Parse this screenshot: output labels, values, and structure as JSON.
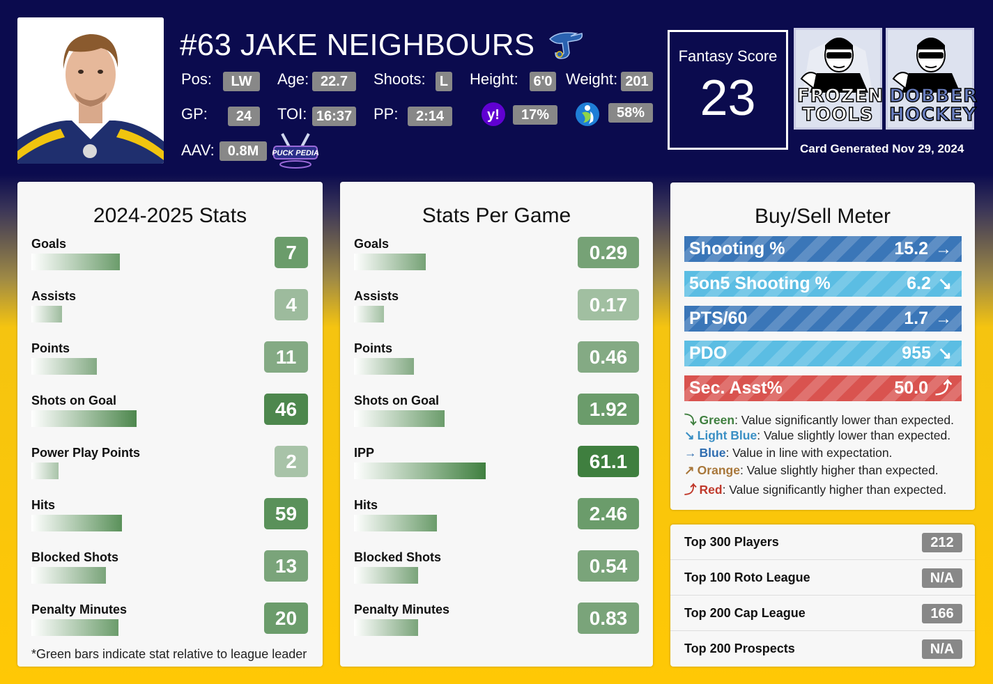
{
  "player": {
    "name": "#63 JAKE NEIGHBOURS",
    "pos_label": "Pos:",
    "pos": "LW",
    "age_label": "Age:",
    "age": "22.7",
    "shoots_label": "Shoots:",
    "shoots": "L",
    "height_label": "Height:",
    "height": "6'0",
    "weight_label": "Weight:",
    "weight": "201",
    "gp_label": "GP:",
    "gp": "24",
    "toi_label": "TOI:",
    "toi": "16:37",
    "pp_label": "PP:",
    "pp": "2:14",
    "yahoo_pct": "17%",
    "espn_pct": "58%",
    "aav_label": "AAV:",
    "aav": "0.8M",
    "puckpedia_text": "PUCK PEDIA"
  },
  "fantasy": {
    "label": "Fantasy Score",
    "score": "23"
  },
  "logos": {
    "frozen": "FROZEN TOOLS",
    "dobber": "DOBBER HOCKEY"
  },
  "card_generated": "Card Generated Nov 29, 2024",
  "season_stats": {
    "title": "2024-2025 Stats",
    "rows": [
      {
        "label": "Goals",
        "value": "7",
        "bar_fraction": 0.49,
        "color": "#6b9c6b"
      },
      {
        "label": "Assists",
        "value": "4",
        "bar_fraction": 0.17,
        "color": "#9dbb9d"
      },
      {
        "label": "Points",
        "value": "11",
        "bar_fraction": 0.36,
        "color": "#84aa84"
      },
      {
        "label": "Shots on Goal",
        "value": "46",
        "bar_fraction": 0.58,
        "color": "#4d874d"
      },
      {
        "label": "Power Play Points",
        "value": "2",
        "bar_fraction": 0.15,
        "color": "#a8c3a8"
      },
      {
        "label": "Hits",
        "value": "59",
        "bar_fraction": 0.5,
        "color": "#5a915a"
      },
      {
        "label": "Blocked Shots",
        "value": "13",
        "bar_fraction": 0.41,
        "color": "#7aa47a"
      },
      {
        "label": "Penalty Minutes",
        "value": "20",
        "bar_fraction": 0.48,
        "color": "#6b9c6b"
      }
    ],
    "footnote": "*Green bars indicate stat relative to league leader"
  },
  "per_game": {
    "title": "Stats Per Game",
    "rows": [
      {
        "label": "Goals",
        "value": "0.29",
        "bar_fraction": 0.38,
        "color": "#76a276"
      },
      {
        "label": "Assists",
        "value": "0.17",
        "bar_fraction": 0.16,
        "color": "#a1bfa1"
      },
      {
        "label": "Points",
        "value": "0.46",
        "bar_fraction": 0.32,
        "color": "#84aa84"
      },
      {
        "label": "Shots on Goal",
        "value": "1.92",
        "bar_fraction": 0.48,
        "color": "#6b9c6b"
      },
      {
        "label": "IPP",
        "value": "61.1",
        "bar_fraction": 0.7,
        "color": "#3f7f3f"
      },
      {
        "label": "Hits",
        "value": "2.46",
        "bar_fraction": 0.44,
        "color": "#6b9c6b"
      },
      {
        "label": "Blocked Shots",
        "value": "0.54",
        "bar_fraction": 0.34,
        "color": "#7aa47a"
      },
      {
        "label": "Penalty Minutes",
        "value": "0.83",
        "bar_fraction": 0.34,
        "color": "#7aa47a"
      }
    ]
  },
  "buy_sell": {
    "title": "Buy/Sell Meter",
    "rows": [
      {
        "label": "Shooting %",
        "value": "15.2",
        "arrow": "→",
        "trend": "blue",
        "color": "#3a76b8"
      },
      {
        "label": "5on5 Shooting %",
        "value": "6.2",
        "arrow": "↘",
        "trend": "light-blue",
        "color": "#5bbde3"
      },
      {
        "label": "PTS/60",
        "value": "1.7",
        "arrow": "→",
        "trend": "blue",
        "color": "#3a76b8"
      },
      {
        "label": "PDO",
        "value": "955",
        "arrow": "↘",
        "trend": "light-blue",
        "color": "#5bbde3"
      },
      {
        "label": "Sec. Asst%",
        "value": "50.0",
        "arrow": "⤴",
        "trend": "red",
        "color": "#d9534f"
      }
    ],
    "legend": [
      {
        "arrow": "⤵",
        "name": "Green",
        "text": ": Value significantly lower than expected.",
        "color": "#3f7f3f"
      },
      {
        "arrow": "↘",
        "name": "Light Blue",
        "text": ": Value slightly lower than expected.",
        "color": "#3a8fc4"
      },
      {
        "arrow": "→",
        "name": "Blue",
        "text": ": Value in line with expectation.",
        "color": "#2f6db0"
      },
      {
        "arrow": "↗",
        "name": "Orange",
        "text": ": Value slightly higher than expected.",
        "color": "#a8773a"
      },
      {
        "arrow": "⤴",
        "name": "Red",
        "text": ": Value significantly higher than expected.",
        "color": "#c0392b"
      }
    ]
  },
  "rankings": [
    {
      "label": "Top 300 Players",
      "value": "212"
    },
    {
      "label": "Top 100 Roto League",
      "value": "N/A"
    },
    {
      "label": "Top 200 Cap League",
      "value": "166"
    },
    {
      "label": "Top 200 Prospects",
      "value": "N/A"
    }
  ]
}
